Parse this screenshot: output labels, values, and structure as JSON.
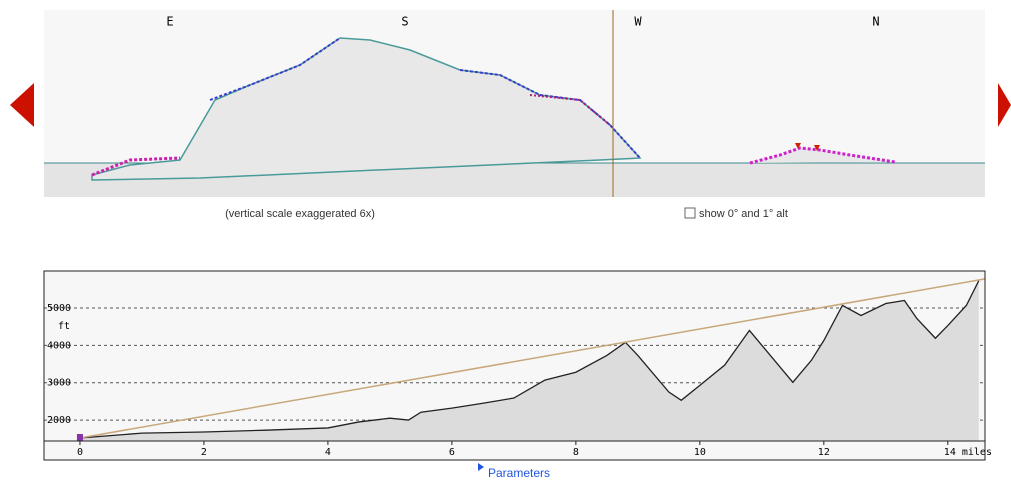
{
  "panorama": {
    "directions": [
      "E",
      "S",
      "W",
      "N"
    ],
    "caption": "(vertical scale exaggerated 6x)",
    "checkbox_label": "show 0° and 1° alt"
  },
  "chart_data": {
    "type": "line",
    "ylabel": "ft",
    "series": [
      {
        "color": "#222222",
        "x": [
          0,
          1,
          2,
          3,
          4,
          4.5,
          5,
          5.3,
          5.5,
          6,
          6.5,
          7,
          7.5,
          8,
          8.5,
          8.8,
          9,
          9.5,
          9.7,
          10,
          10.4,
          10.8,
          11,
          11.5,
          11.8,
          12,
          12.3,
          12.6,
          13,
          13.3,
          13.5,
          13.8,
          14,
          14.3,
          14.5
        ],
        "values": [
          1520,
          1650,
          1680,
          1730,
          1790,
          1950,
          2050,
          2000,
          2210,
          2320,
          2450,
          2590,
          3070,
          3280,
          3730,
          4080,
          3730,
          2750,
          2530,
          2930,
          3470,
          4400,
          4000,
          3010,
          3600,
          4130,
          5070,
          4800,
          5120,
          5200,
          4720,
          4190,
          4530,
          5070,
          5730
        ]
      },
      {
        "color": "#c8a77a",
        "x": [
          0,
          14.6
        ],
        "values": [
          1520,
          5780
        ]
      }
    ],
    "xlim": [
      -0.58,
      14.6
    ],
    "ylim": [
      1440,
      5990
    ],
    "xticks": [
      0,
      2,
      4,
      6,
      8,
      10,
      12,
      {
        "value": 14,
        "label": "14 miles"
      }
    ],
    "yticks": [
      2000,
      3000,
      4000,
      5000
    ],
    "grid": true
  },
  "parameters_link": "Parameters"
}
